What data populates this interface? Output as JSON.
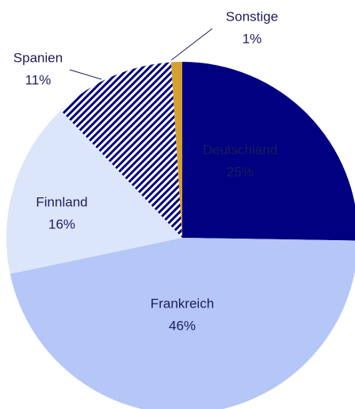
{
  "chart_data": {
    "type": "pie",
    "categories": [
      "Deutschland",
      "Frankreich",
      "Finnland",
      "Spanien",
      "Sonstige"
    ],
    "values": [
      25,
      46,
      16,
      11,
      1
    ],
    "value_labels": [
      "25%",
      "46%",
      "16%",
      "11%",
      "1%"
    ],
    "colors": [
      "#000080",
      "#b4c7f7",
      "#dce6fa",
      "#000080",
      "#d4a030"
    ],
    "hatched": [
      false,
      false,
      false,
      true,
      false
    ]
  }
}
